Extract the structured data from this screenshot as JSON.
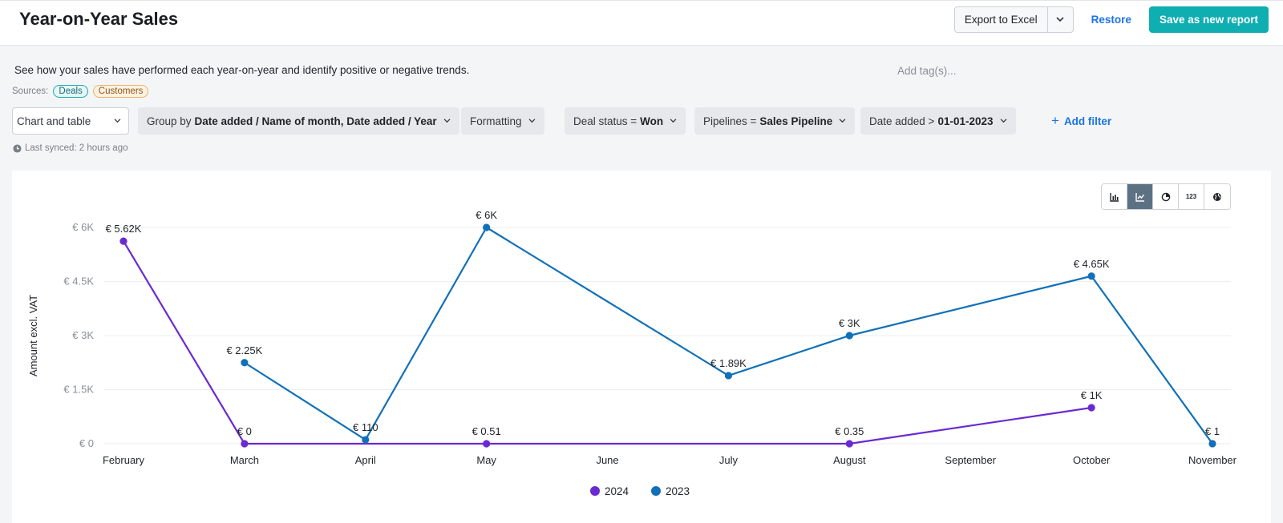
{
  "header": {
    "title": "Year-on-Year Sales",
    "export_label": "Export to Excel",
    "restore_label": "Restore",
    "save_label": "Save as new report"
  },
  "description": "See how your sales have performed each year-on-year and identify positive or negative trends.",
  "tags_placeholder": "Add tag(s)...",
  "sources": {
    "label": "Sources:",
    "items": [
      "Deals",
      "Customers"
    ]
  },
  "toolbar": {
    "view_select": "Chart and table",
    "group_by_prefix": "Group by",
    "group_by_value": "Date added / Name of month, Date added / Year",
    "formatting": "Formatting",
    "filters": [
      {
        "prefix": "Deal status =",
        "value": "Won"
      },
      {
        "prefix": "Pipelines =",
        "value": "Sales Pipeline"
      },
      {
        "prefix": "Date added >",
        "value": "01-01-2023"
      }
    ],
    "add_filter": "Add filter"
  },
  "last_synced": "Last synced: 2 hours ago",
  "view_types": [
    {
      "icon": "bar-chart-icon",
      "active": false
    },
    {
      "icon": "line-chart-icon",
      "active": true
    },
    {
      "icon": "pie-chart-icon",
      "active": false
    },
    {
      "icon": "number-icon",
      "active": false,
      "text": "123"
    },
    {
      "icon": "globe-icon",
      "active": false
    }
  ],
  "chart_data": {
    "type": "line",
    "ylabel": "Amount excl. VAT",
    "ylim": [
      0,
      6000
    ],
    "yticks": [
      {
        "value": 0,
        "label": "€ 0"
      },
      {
        "value": 1500,
        "label": "€ 1.5K"
      },
      {
        "value": 3000,
        "label": "€ 3K"
      },
      {
        "value": 4500,
        "label": "€ 4.5K"
      },
      {
        "value": 6000,
        "label": "€ 6K"
      }
    ],
    "categories": [
      "February",
      "March",
      "April",
      "May",
      "June",
      "July",
      "August",
      "September",
      "October",
      "November"
    ],
    "grid": true,
    "legend_position": "bottom",
    "series": [
      {
        "name": "2024",
        "color": "#6a2ad1",
        "points": [
          {
            "x": "February",
            "y": 5620,
            "label": "€ 5.62K"
          },
          {
            "x": "March",
            "y": 0,
            "label": "€ 0"
          },
          {
            "x": "May",
            "y": 0.51,
            "label": "€ 0.51"
          },
          {
            "x": "August",
            "y": 0.35,
            "label": "€ 0.35"
          },
          {
            "x": "October",
            "y": 1000,
            "label": "€ 1K"
          }
        ]
      },
      {
        "name": "2023",
        "color": "#1170b8",
        "points": [
          {
            "x": "March",
            "y": 2250,
            "label": "€ 2.25K"
          },
          {
            "x": "April",
            "y": 110,
            "label": "€ 110"
          },
          {
            "x": "May",
            "y": 6000,
            "label": "€ 6K"
          },
          {
            "x": "July",
            "y": 1890,
            "label": "€ 1.89K"
          },
          {
            "x": "August",
            "y": 3000,
            "label": "€ 3K"
          },
          {
            "x": "October",
            "y": 4650,
            "label": "€ 4.65K"
          },
          {
            "x": "November",
            "y": 1,
            "label": "€ 1"
          }
        ]
      }
    ]
  }
}
